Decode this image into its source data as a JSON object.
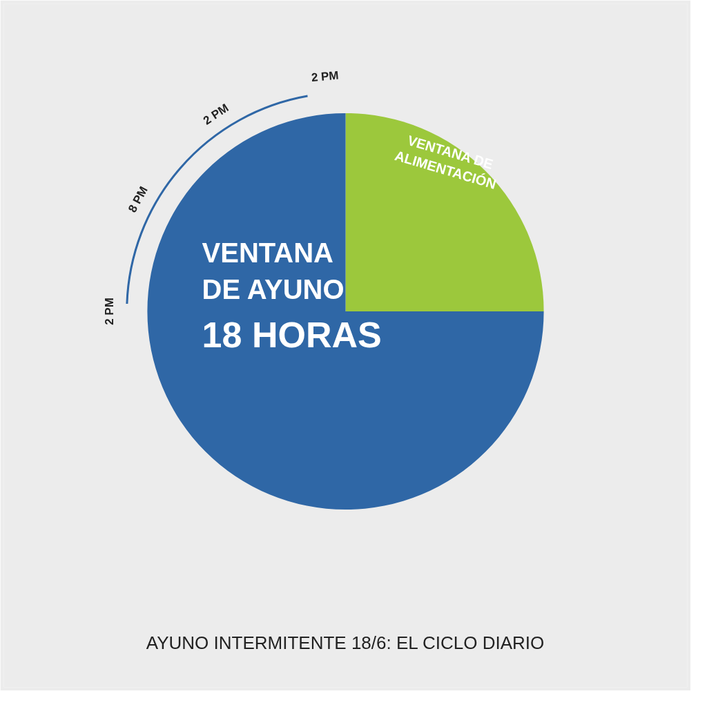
{
  "chart_data": {
    "type": "pie",
    "title": "AYUNO INTERMITENTE 18/6: EL CICLO DIARIO",
    "categories": [
      "VENTANA DE ALIMENTACIÓN",
      "VENTANA DE AYUNO"
    ],
    "values": [
      6,
      18
    ],
    "colors": [
      "#9cc83c",
      "#2f67a6"
    ],
    "value_labels": [
      null,
      "18 HORAS"
    ],
    "annotations": [
      "2 PM",
      "8 PM",
      "2 PM",
      "2 PM"
    ]
  }
}
